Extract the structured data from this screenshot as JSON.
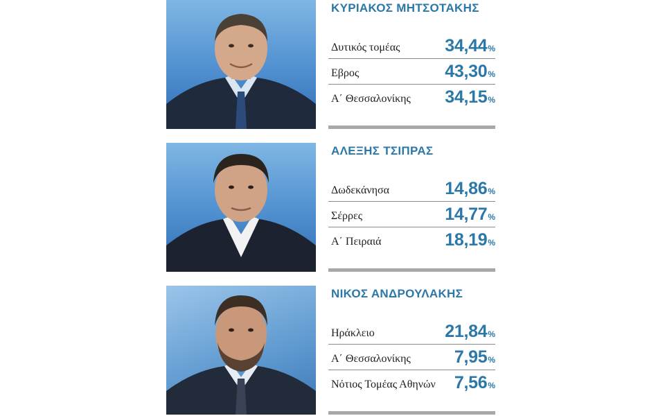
{
  "candidates": [
    {
      "name": "ΚΥΡΙΑΚΟΣ ΜΗΤΣΟΤΑΚΗΣ",
      "results": [
        {
          "region": "Δυτικός τομέας",
          "value": "34,44",
          "unit": "%"
        },
        {
          "region": "Εβρος",
          "value": "43,30",
          "unit": "%"
        },
        {
          "region": "Α΄ Θεσσαλονίκης",
          "value": "34,15",
          "unit": "%"
        }
      ]
    },
    {
      "name": "ΑΛΕΞΗΣ ΤΣΙΠΡΑΣ",
      "results": [
        {
          "region": "Δωδεκάνησα",
          "value": "14,86",
          "unit": "%"
        },
        {
          "region": "Σέρρες",
          "value": "14,77",
          "unit": "%"
        },
        {
          "region": "Α΄ Πειραιά",
          "value": "18,19",
          "unit": "%"
        }
      ]
    },
    {
      "name": "ΝΙΚΟΣ ΑΝΔΡΟΥΛΑΚΗΣ",
      "results": [
        {
          "region": "Ηράκλειο",
          "value": "21,84",
          "unit": "%"
        },
        {
          "region": "Α΄ Θεσσαλονίκης",
          "value": "7,95",
          "unit": "%"
        },
        {
          "region": "Νότιος Τομέας Αθηνών",
          "value": "7,56",
          "unit": "%"
        }
      ]
    }
  ]
}
